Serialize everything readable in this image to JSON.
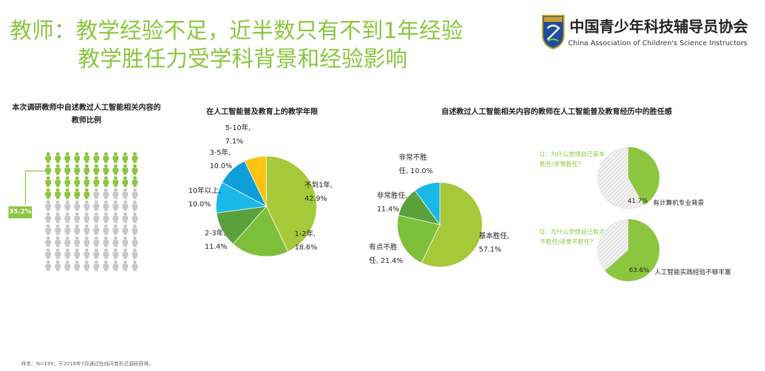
{
  "title": {
    "line1": "教师：教学经验不足，近半数只有不到1年经验",
    "line2": "教学胜任力受学科背景和经验影响"
  },
  "logo": {
    "name_cn": "中国青少年科技辅导员协会",
    "name_en": "China Association of Children's Science Instructors",
    "emblem_icon": "association-emblem-icon"
  },
  "colors": {
    "accent": "#8cc63f",
    "dark_green": "#5aa13c",
    "mid_green": "#7dbe3a",
    "cyan": "#19b8e8",
    "yellow": "#ffc20e",
    "gray_person": "#c8c8c8"
  },
  "panel1": {
    "title_line1": "本次调研教师中自述教过人工智能相关内容的",
    "title_line2": "教师比例",
    "percent_label": "35.2%"
  },
  "panel2": {
    "title": "在人工智能普及教育上的教学年限"
  },
  "panel3": {
    "title": "自述教过人工智能相关内容的教师在人工智能普及教育经历中的胜任感",
    "q1_line1": "Q：为什么觉得自己基本",
    "q1_line2": "胜任/非常胜任？",
    "q1_percent": "41.7%",
    "q1_reason": "有计算机专业背景",
    "q2_line1": "Q：为什么觉得自己有点",
    "q2_line2": "不胜任/非常不胜任？",
    "q2_percent": "63.6%",
    "q2_reason": "人工智能实践经验不够丰富"
  },
  "footer": "样本：N=199；于2018年7月通过在线问卷形式调研获得。",
  "chart_data": [
    {
      "type": "pictogram",
      "value": 35.2,
      "unit": "%"
    },
    {
      "type": "pie",
      "labels": [
        "不到1年,",
        "1-2年,",
        "2-3年,",
        "10年以上,",
        "3-5年,",
        "5-10年,"
      ],
      "values": [
        42.9,
        18.6,
        11.4,
        10.0,
        10.0,
        7.1
      ],
      "value_labels": [
        "42.9%",
        "18.6%",
        "11.4%",
        "10.0%",
        "10.0%",
        "7.1%"
      ],
      "colors": [
        "#a5c938",
        "#7dbe3a",
        "#5aa13c",
        "#19b8e8",
        "#0e9fd9",
        "#ffc20e"
      ]
    },
    {
      "type": "pie",
      "labels": [
        "基本胜任,",
        "有点不胜",
        "非常胜任,",
        "非常不胜"
      ],
      "label_suffix": [
        "",
        "任, ",
        "",
        "任, "
      ],
      "values": [
        57.1,
        21.4,
        11.4,
        10.0
      ],
      "value_labels": [
        "57.1%",
        "21.4%",
        "11.4%",
        "10.0%"
      ],
      "colors": [
        "#a5c938",
        "#7dbe3a",
        "#5aa13c",
        "#19b8e8"
      ]
    },
    {
      "type": "pie",
      "values": [
        41.7,
        58.3
      ],
      "colors": [
        "#8cc63f",
        "#e6e6e6"
      ]
    },
    {
      "type": "pie",
      "values": [
        63.6,
        36.4
      ],
      "colors": [
        "#8cc63f",
        "#e6e6e6"
      ]
    }
  ]
}
